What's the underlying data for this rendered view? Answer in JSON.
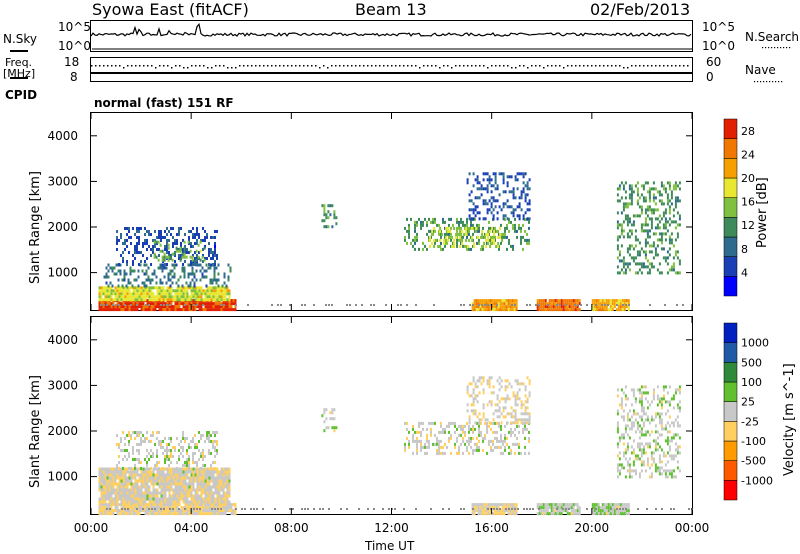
{
  "header": {
    "station": "Syowa East (fitACF)",
    "beam": "Beam 13",
    "date": "02/Feb/2013"
  },
  "top_panels": {
    "nsky_label": "N.Sky",
    "nsearch_label": "N.Search",
    "nsky_ticks": [
      "10^5",
      "10^0"
    ],
    "nsearch_ticks": [
      "10^5",
      "10^0"
    ],
    "freq_label": "Freq.",
    "freq_unit": "[MHz]",
    "freq_ticks": [
      "18",
      "8"
    ],
    "nave_label": "Nave",
    "nave_ticks": [
      "60",
      "0"
    ],
    "cpid_label": "CPID",
    "cpid_text": "normal (fast) 151 RF"
  },
  "x_axis": {
    "label": "Time UT",
    "ticks": [
      "00:00",
      "04:00",
      "08:00",
      "12:00",
      "16:00",
      "20:00",
      "00:00"
    ]
  },
  "colors": {
    "power": [
      "#0000ff",
      "#1a3fb5",
      "#2f6a8f",
      "#3f8a5a",
      "#7fc040",
      "#e8e832",
      "#f5a000",
      "#f07800",
      "#e02000"
    ],
    "velocity": [
      "#ff0000",
      "#ff5a00",
      "#ff9a00",
      "#ffd060",
      "#c8c8c8",
      "#60c030",
      "#2e8a3a",
      "#1e5aa8",
      "#0020c0"
    ],
    "ground_scatter": "#8a8a8a"
  },
  "chart_data": [
    {
      "type": "heatmap",
      "title": "Power",
      "ylabel": "Slant Range [km]",
      "xlabel": "",
      "xlim": [
        0,
        24
      ],
      "ylim": [
        180,
        4500
      ],
      "y_ticks": [
        "1000",
        "2000",
        "3000",
        "4000"
      ],
      "colorbar": {
        "label": "Power [dB]",
        "ticks": [
          "4",
          "8",
          "12",
          "16",
          "20",
          "24",
          "28"
        ],
        "range": [
          0,
          30
        ]
      },
      "regions": [
        {
          "t0": 0.3,
          "t1": 5.8,
          "r0": 190,
          "r1": 420,
          "value": 28
        },
        {
          "t0": 0.3,
          "t1": 5.5,
          "r0": 420,
          "r1": 700,
          "value": 18
        },
        {
          "t0": 0.5,
          "t1": 5.6,
          "r0": 700,
          "r1": 1200,
          "value": 9
        },
        {
          "t0": 1.0,
          "t1": 5.0,
          "r0": 1200,
          "r1": 2000,
          "value": 6
        },
        {
          "t0": 2.5,
          "t1": 4.5,
          "r0": 1300,
          "r1": 1700,
          "value": 14
        },
        {
          "t0": 9.2,
          "t1": 9.8,
          "r0": 2000,
          "r1": 2500,
          "value": 12
        },
        {
          "t0": 12.5,
          "t1": 17.5,
          "r0": 1500,
          "r1": 2200,
          "value": 12
        },
        {
          "t0": 13.5,
          "t1": 16.5,
          "r0": 1600,
          "r1": 2000,
          "value": 17
        },
        {
          "t0": 15.0,
          "t1": 17.5,
          "r0": 2200,
          "r1": 3200,
          "value": 6
        },
        {
          "t0": 15.2,
          "t1": 17.0,
          "r0": 220,
          "r1": 420,
          "value": 22
        },
        {
          "t0": 17.8,
          "t1": 19.5,
          "r0": 220,
          "r1": 420,
          "value": 25
        },
        {
          "t0": 20.0,
          "t1": 21.5,
          "r0": 220,
          "r1": 420,
          "value": 21
        },
        {
          "t0": 21.0,
          "t1": 23.5,
          "r0": 1000,
          "r1": 3000,
          "value": 12
        }
      ]
    },
    {
      "type": "heatmap",
      "title": "Velocity",
      "ylabel": "Slant Range [km]",
      "xlabel": "Time UT",
      "xlim": [
        0,
        24
      ],
      "ylim": [
        180,
        4500
      ],
      "y_ticks": [
        "1000",
        "2000",
        "3000",
        "4000"
      ],
      "colorbar": {
        "label": "Velocity [m s^-1]",
        "ticks": [
          "1000",
          "500",
          "100",
          "25",
          "-25",
          "-100",
          "-500",
          "-1000"
        ],
        "range": [
          -1000,
          1000
        ]
      },
      "regions": [
        {
          "t0": 0.3,
          "t1": 5.8,
          "r0": 190,
          "r1": 420,
          "value": -120
        },
        {
          "t0": 0.3,
          "t1": 5.5,
          "r0": 420,
          "r1": 1200,
          "value": -60
        },
        {
          "t0": 1.0,
          "t1": 5.0,
          "r0": 1200,
          "r1": 2000,
          "value": 0
        },
        {
          "t0": 9.2,
          "t1": 9.8,
          "r0": 2000,
          "r1": 2500,
          "value": 0
        },
        {
          "t0": 12.5,
          "t1": 17.5,
          "r0": 1500,
          "r1": 2200,
          "value": 0
        },
        {
          "t0": 15.0,
          "t1": 17.5,
          "r0": 2200,
          "r1": 3200,
          "value": -80
        },
        {
          "t0": 15.2,
          "t1": 17.0,
          "r0": 220,
          "r1": 420,
          "value": -100
        },
        {
          "t0": 17.8,
          "t1": 19.5,
          "r0": 220,
          "r1": 420,
          "value": 60
        },
        {
          "t0": 20.0,
          "t1": 21.5,
          "r0": 220,
          "r1": 420,
          "value": 60
        },
        {
          "t0": 21.0,
          "t1": 23.5,
          "r0": 1000,
          "r1": 3000,
          "value": 40
        }
      ]
    }
  ]
}
